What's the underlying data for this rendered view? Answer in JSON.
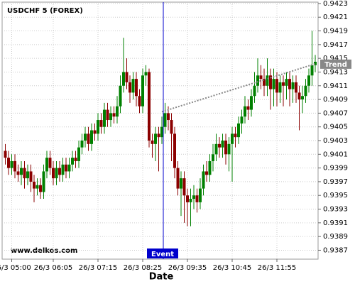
{
  "chart_data": {
    "type": "candlestick",
    "title": "USDCHF 5 (FOREX)",
    "watermark": "www.delkos.com",
    "x_label": "Date",
    "x": [
      "26/3 04:50",
      "26/3 04:55",
      "26/3 05:00",
      "26/3 05:05",
      "26/3 05:10",
      "26/3 05:15",
      "26/3 05:20",
      "26/3 05:25",
      "26/3 05:30",
      "26/3 05:35",
      "26/3 05:40",
      "26/3 05:45",
      "26/3 05:50",
      "26/3 05:55",
      "26/3 06:00",
      "26/3 06:05",
      "26/3 06:10",
      "26/3 06:15",
      "26/3 06:20",
      "26/3 06:25",
      "26/3 06:30",
      "26/3 06:35",
      "26/3 06:40",
      "26/3 06:45",
      "26/3 06:50",
      "26/3 06:55",
      "26/3 07:00",
      "26/3 07:05",
      "26/3 07:10",
      "26/3 07:15",
      "26/3 07:20",
      "26/3 07:25",
      "26/3 07:30",
      "26/3 07:35",
      "26/3 07:40",
      "26/3 07:45",
      "26/3 07:50",
      "26/3 07:55",
      "26/3 08:00",
      "26/3 08:05",
      "26/3 08:10",
      "26/3 08:15",
      "26/3 08:20",
      "26/3 08:25",
      "26/3 08:30",
      "26/3 08:35",
      "26/3 08:40",
      "26/3 08:45",
      "26/3 08:50",
      "26/3 08:55",
      "26/3 09:00",
      "26/3 09:05",
      "26/3 09:10",
      "26/3 09:15",
      "26/3 09:20",
      "26/3 09:25",
      "26/3 09:30",
      "26/3 09:35",
      "26/3 09:40",
      "26/3 09:45",
      "26/3 09:50",
      "26/3 09:55",
      "26/3 10:00",
      "26/3 10:05",
      "26/3 10:10",
      "26/3 10:15",
      "26/3 10:20",
      "26/3 10:25",
      "26/3 10:30",
      "26/3 10:35",
      "26/3 10:40",
      "26/3 10:45",
      "26/3 10:50",
      "26/3 10:55",
      "26/3 11:00",
      "26/3 11:05",
      "26/3 11:10",
      "26/3 11:15",
      "26/3 11:20",
      "26/3 11:25",
      "26/3 11:30",
      "26/3 11:35",
      "26/3 11:40",
      "26/3 11:45",
      "26/3 11:50",
      "26/3 11:55",
      "26/3 12:00",
      "26/3 12:05",
      "26/3 12:10",
      "26/3 12:15",
      "26/3 12:20",
      "26/3 12:25",
      "26/3 12:30",
      "26/3 12:35",
      "26/3 12:40",
      "26/3 12:45",
      "26/3 12:50",
      "26/3 12:55"
    ],
    "open": [
      0.94015,
      0.94005,
      0.9399,
      0.94,
      0.93985,
      0.9398,
      0.9399,
      0.93975,
      0.93985,
      0.9397,
      0.9396,
      0.93965,
      0.93955,
      0.93985,
      0.94005,
      0.9399,
      0.93975,
      0.9399,
      0.9398,
      0.93995,
      0.93985,
      0.93995,
      0.94005,
      0.94,
      0.9402,
      0.9403,
      0.9404,
      0.94025,
      0.94045,
      0.9404,
      0.9406,
      0.9405,
      0.94075,
      0.9406,
      0.9407,
      0.94065,
      0.9408,
      0.9411,
      0.9413,
      0.94115,
      0.941,
      0.9412,
      0.94095,
      0.9408,
      0.94125,
      0.9413,
      0.9403,
      0.94025,
      0.9404,
      0.94035,
      0.9405,
      0.9407,
      0.9406,
      0.9404,
      0.9399,
      0.9396,
      0.93975,
      0.9395,
      0.9394,
      0.93945,
      0.9395,
      0.9394,
      0.9396,
      0.93985,
      0.9398,
      0.94,
      0.9401,
      0.94025,
      0.9402,
      0.9403,
      0.9401,
      0.94025,
      0.9404,
      0.94035,
      0.94055,
      0.94065,
      0.9408,
      0.94075,
      0.94095,
      0.9411,
      0.94125,
      0.9412,
      0.9411,
      0.94125,
      0.94105,
      0.9412,
      0.941,
      0.94115,
      0.9411,
      0.9412,
      0.94105,
      0.94115,
      0.941,
      0.9409,
      0.94095,
      0.9411,
      0.94125,
      0.9414
    ],
    "high": [
      0.94025,
      0.94015,
      0.9401,
      0.9401,
      0.93995,
      0.94,
      0.94,
      0.93995,
      0.93995,
      0.9398,
      0.93975,
      0.93975,
      0.93995,
      0.94015,
      0.94015,
      0.94,
      0.94,
      0.94,
      0.94005,
      0.94005,
      0.94005,
      0.94015,
      0.94015,
      0.9403,
      0.9404,
      0.9405,
      0.9405,
      0.94055,
      0.94055,
      0.9407,
      0.9407,
      0.94085,
      0.94085,
      0.9408,
      0.9408,
      0.94095,
      0.94125,
      0.9418,
      0.9415,
      0.94125,
      0.9413,
      0.9413,
      0.94105,
      0.94135,
      0.9414,
      0.94135,
      0.9404,
      0.9405,
      0.9405,
      0.94065,
      0.94085,
      0.9408,
      0.9407,
      0.9405,
      0.94,
      0.93985,
      0.93985,
      0.9396,
      0.9396,
      0.93965,
      0.9396,
      0.93975,
      0.93995,
      0.94,
      0.9401,
      0.94025,
      0.9404,
      0.94035,
      0.9404,
      0.9404,
      0.94035,
      0.9405,
      0.9405,
      0.94065,
      0.94075,
      0.94095,
      0.9409,
      0.94105,
      0.9413,
      0.9415,
      0.9414,
      0.94135,
      0.9415,
      0.94135,
      0.94135,
      0.9413,
      0.94125,
      0.94125,
      0.9413,
      0.9413,
      0.94125,
      0.94125,
      0.9411,
      0.9411,
      0.9412,
      0.94135,
      0.9419,
      0.94155
    ],
    "low": [
      0.93995,
      0.9398,
      0.9398,
      0.93975,
      0.9397,
      0.93965,
      0.9396,
      0.93965,
      0.93955,
      0.9394,
      0.9395,
      0.93945,
      0.93945,
      0.93975,
      0.9398,
      0.93965,
      0.93965,
      0.9397,
      0.9397,
      0.93975,
      0.93975,
      0.93985,
      0.9399,
      0.9399,
      0.9401,
      0.9402,
      0.94015,
      0.94015,
      0.9403,
      0.9403,
      0.9404,
      0.9404,
      0.9405,
      0.9405,
      0.94055,
      0.94055,
      0.9407,
      0.941,
      0.94105,
      0.94085,
      0.9409,
      0.9408,
      0.9407,
      0.9407,
      0.9411,
      0.9402,
      0.94005,
      0.94,
      0.93985,
      0.94025,
      0.9404,
      0.94045,
      0.94,
      0.93975,
      0.9395,
      0.9392,
      0.9391,
      0.93905,
      0.93905,
      0.9393,
      0.93925,
      0.9393,
      0.9395,
      0.9397,
      0.9397,
      0.93985,
      0.94,
      0.94005,
      0.94005,
      0.93995,
      0.93985,
      0.9397,
      0.9402,
      0.94025,
      0.9404,
      0.94055,
      0.9406,
      0.94065,
      0.94085,
      0.941,
      0.94105,
      0.94095,
      0.94095,
      0.94075,
      0.9408,
      0.9408,
      0.94085,
      0.9408,
      0.9409,
      0.9408,
      0.94085,
      0.94085,
      0.94045,
      0.9407,
      0.94085,
      0.941,
      0.9411,
      0.9413
    ],
    "close": [
      0.94005,
      0.9399,
      0.94,
      0.93985,
      0.9398,
      0.9399,
      0.93975,
      0.93985,
      0.9397,
      0.9396,
      0.93965,
      0.93955,
      0.93985,
      0.94005,
      0.9399,
      0.93975,
      0.9399,
      0.9398,
      0.93995,
      0.93985,
      0.93995,
      0.94005,
      0.94,
      0.9402,
      0.9403,
      0.9404,
      0.94025,
      0.94045,
      0.9404,
      0.9406,
      0.9405,
      0.94075,
      0.9406,
      0.9407,
      0.94065,
      0.9408,
      0.9411,
      0.9413,
      0.94115,
      0.941,
      0.9412,
      0.94095,
      0.9408,
      0.94125,
      0.9413,
      0.9403,
      0.94025,
      0.9404,
      0.94035,
      0.9405,
      0.9407,
      0.9406,
      0.9404,
      0.9399,
      0.9396,
      0.93975,
      0.9395,
      0.9394,
      0.93945,
      0.9395,
      0.9394,
      0.9396,
      0.93985,
      0.9398,
      0.94,
      0.9401,
      0.94025,
      0.9402,
      0.9403,
      0.9401,
      0.94025,
      0.9404,
      0.94035,
      0.94055,
      0.94065,
      0.9408,
      0.94075,
      0.94095,
      0.9411,
      0.94125,
      0.9412,
      0.9411,
      0.94125,
      0.94105,
      0.9412,
      0.941,
      0.94115,
      0.9411,
      0.9412,
      0.94105,
      0.94115,
      0.941,
      0.9409,
      0.94095,
      0.9411,
      0.94125,
      0.9414,
      0.94145
    ],
    "up_color": "#008000",
    "down_color": "#8b0000",
    "ylim": [
      0.93857,
      0.94232
    ],
    "yticks": [
      0.9387,
      0.9389,
      0.9391,
      0.9393,
      0.9395,
      0.9397,
      0.9399,
      0.9401,
      0.9403,
      0.9405,
      0.9407,
      0.9409,
      0.9411,
      0.9413,
      0.9415,
      0.9417,
      0.9419,
      0.9421,
      0.9423
    ],
    "xticks": [
      "26/3 05:00",
      "26/3 06:05",
      "26/3 07:15",
      "26/3 08:25",
      "26/3 09:35",
      "26/3 10:45",
      "26/3 11:55"
    ],
    "grid": true,
    "event": {
      "label": "Event",
      "x": "26/3 08:55",
      "color": "#0000cc"
    },
    "trend": {
      "label": "Trend",
      "start": {
        "x": "26/3 08:55",
        "y": 0.94072
      },
      "end": {
        "x": "26/3 12:55",
        "y": 0.94142
      },
      "color": "#888888"
    }
  }
}
